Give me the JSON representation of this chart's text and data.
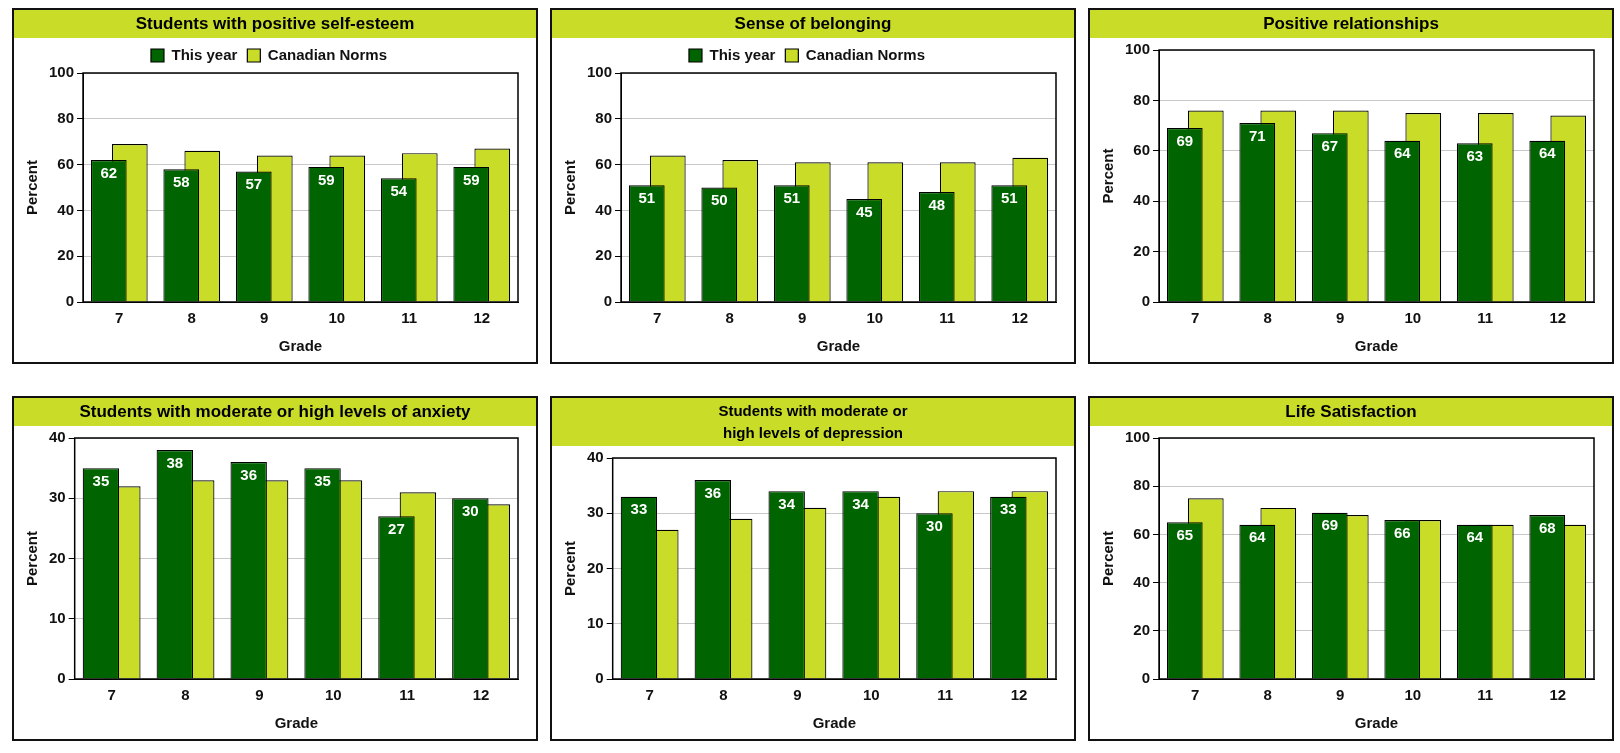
{
  "chart_data": [
    {
      "type": "bar",
      "title": "Students with positive self-esteem",
      "xlabel": "Grade",
      "ylabel": "Percent",
      "categories": [
        "7",
        "8",
        "9",
        "10",
        "11",
        "12"
      ],
      "ylim": [
        0,
        100
      ],
      "yticks": [
        0,
        20,
        40,
        60,
        80,
        100
      ],
      "grid": "y",
      "legend": "top",
      "series": [
        {
          "name": "This year",
          "color": "#006400",
          "values": [
            62,
            58,
            57,
            59,
            54,
            59
          ],
          "value_labels": [
            "62",
            "58",
            "57",
            "59",
            "54",
            "59"
          ]
        },
        {
          "name": "Canadian Norms",
          "color": "#c8dc28",
          "values": [
            69,
            66,
            64,
            64,
            65,
            67
          ]
        }
      ]
    },
    {
      "type": "bar",
      "title": "Sense of belonging",
      "xlabel": "Grade",
      "ylabel": "Percent",
      "categories": [
        "7",
        "8",
        "9",
        "10",
        "11",
        "12"
      ],
      "ylim": [
        0,
        100
      ],
      "yticks": [
        0,
        20,
        40,
        60,
        80,
        100
      ],
      "grid": "y",
      "legend": "top",
      "series": [
        {
          "name": "This year",
          "color": "#006400",
          "values": [
            51,
            50,
            51,
            45,
            48,
            51
          ],
          "value_labels": [
            "51",
            "50",
            "51",
            "45",
            "48",
            "51"
          ]
        },
        {
          "name": "Canadian Norms",
          "color": "#c8dc28",
          "values": [
            64,
            62,
            61,
            61,
            61,
            63
          ]
        }
      ]
    },
    {
      "type": "bar",
      "title": "Positive relationships",
      "xlabel": "Grade",
      "ylabel": "Percent",
      "categories": [
        "7",
        "8",
        "9",
        "10",
        "11",
        "12"
      ],
      "ylim": [
        0,
        100
      ],
      "yticks": [
        0,
        20,
        40,
        60,
        80,
        100
      ],
      "grid": "y",
      "series": [
        {
          "color": "#006400",
          "values": [
            69,
            71,
            67,
            64,
            63,
            64
          ],
          "value_labels": [
            "69",
            "71",
            "67",
            "64",
            "63",
            "64"
          ]
        },
        {
          "color": "#c8dc28",
          "values": [
            76,
            76,
            76,
            75,
            75,
            74
          ]
        }
      ]
    },
    {
      "type": "bar",
      "title": "Students with moderate or high levels of anxiety",
      "xlabel": "Grade",
      "ylabel": "Percent",
      "categories": [
        "7",
        "8",
        "9",
        "10",
        "11",
        "12"
      ],
      "ylim": [
        0,
        40
      ],
      "yticks": [
        0,
        10,
        20,
        30,
        40
      ],
      "grid": "y",
      "series": [
        {
          "color": "#006400",
          "values": [
            35,
            38,
            36,
            35,
            27,
            30
          ],
          "value_labels": [
            "35",
            "38",
            "36",
            "35",
            "27",
            "30"
          ]
        },
        {
          "color": "#c8dc28",
          "values": [
            32,
            33,
            33,
            33,
            31,
            29
          ]
        }
      ]
    },
    {
      "type": "bar",
      "title": "Students with moderate or high levels of depression",
      "xlabel": "Grade",
      "ylabel": "Percent",
      "categories": [
        "7",
        "8",
        "9",
        "10",
        "11",
        "12"
      ],
      "ylim": [
        0,
        40
      ],
      "yticks": [
        0,
        10,
        20,
        30,
        40
      ],
      "grid": "y",
      "series": [
        {
          "color": "#006400",
          "values": [
            33,
            36,
            34,
            34,
            30,
            33
          ],
          "value_labels": [
            "33",
            "36",
            "34",
            "34",
            "30",
            "33"
          ]
        },
        {
          "color": "#c8dc28",
          "values": [
            27,
            29,
            31,
            33,
            34,
            34
          ]
        }
      ]
    },
    {
      "type": "bar",
      "title": "Life Satisfaction",
      "xlabel": "Grade",
      "ylabel": "Percent",
      "categories": [
        "7",
        "8",
        "9",
        "10",
        "11",
        "12"
      ],
      "ylim": [
        0,
        100
      ],
      "yticks": [
        0,
        20,
        40,
        60,
        80,
        100
      ],
      "grid": "y",
      "series": [
        {
          "color": "#006400",
          "values": [
            65,
            64,
            69,
            66,
            64,
            68
          ],
          "value_labels": [
            "65",
            "64",
            "69",
            "66",
            "64",
            "68"
          ]
        },
        {
          "color": "#c8dc28",
          "values": [
            75,
            71,
            68,
            66,
            64,
            64
          ]
        }
      ]
    }
  ]
}
